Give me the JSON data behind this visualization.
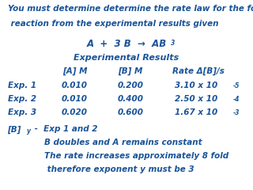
{
  "bg_color": "#ffffff",
  "text_color": "#1a5499",
  "title_line1": "You must determine determine the rate law for the following",
  "title_line2": " reaction from the experimental results given",
  "exp_title": "Experimental Results",
  "col_headers": [
    "[A] M",
    "[B] M",
    "Rate Δ[B]/s"
  ],
  "exp_labels": [
    "Exp. 1",
    "Exp. 2",
    "Exp. 3"
  ],
  "col_A": [
    "0.010",
    "0.010",
    "0.020"
  ],
  "col_B": [
    "0.200",
    "0.400",
    "0.600"
  ],
  "col_rate": [
    "3.10 x 10",
    "2.50 x 10",
    "1.67 x 10"
  ],
  "col_exp": [
    "-5",
    "-4",
    "-3"
  ],
  "fs_title": 7.5,
  "fs_body": 7.5,
  "fs_super": 5.5
}
